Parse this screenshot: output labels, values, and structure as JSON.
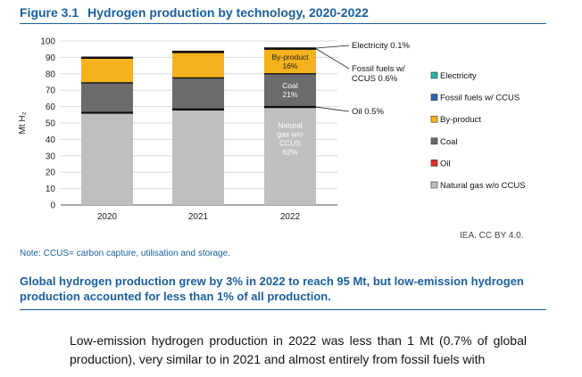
{
  "figure": {
    "number": "Figure 3.1",
    "title": "Hydrogen production by technology, 2020-2022"
  },
  "chart_data": {
    "type": "bar",
    "stacked": true,
    "ylabel": "Mt H₂",
    "ylim": [
      0,
      100
    ],
    "yticks": [
      0,
      10,
      20,
      30,
      40,
      50,
      60,
      70,
      80,
      90,
      100
    ],
    "categories": [
      "2020",
      "2021",
      "2022"
    ],
    "series": [
      {
        "name": "Natural gas w/o CCUS",
        "color": "#bfbfbf",
        "values": [
          56,
          58,
          59.5
        ]
      },
      {
        "name": "Oil",
        "color": "#e32c2c",
        "values": [
          0.5,
          0.5,
          0.5
        ]
      },
      {
        "name": "Coal",
        "color": "#6b6b6b",
        "values": [
          18,
          19,
          20
        ]
      },
      {
        "name": "By-product",
        "color": "#f5b21c",
        "values": [
          15,
          15.5,
          15
        ]
      },
      {
        "name": "Fossil fuels w/ CCUS",
        "color": "#2f63a8",
        "values": [
          0.5,
          0.6,
          0.6
        ]
      },
      {
        "name": "Electricity",
        "color": "#2ab4a3",
        "values": [
          0.1,
          0.1,
          0.1
        ]
      }
    ],
    "legend": [
      "Electricity",
      "Fossil fuels w/ CCUS",
      "By-product",
      "Coal",
      "Oil",
      "Natural gas w/o CCUS"
    ],
    "bar_labels_2022": [
      {
        "series": "By-product",
        "lines": [
          "By-product",
          "16%"
        ]
      },
      {
        "series": "Coal",
        "lines": [
          "Coal",
          "21%"
        ]
      },
      {
        "series": "Natural gas w/o CCUS",
        "lines": [
          "Natural",
          "gas w/o",
          "CCUS",
          "62%"
        ]
      }
    ],
    "annotations": [
      {
        "series": "Electricity",
        "lines": [
          "Electricity 0.1%"
        ]
      },
      {
        "series": "Fossil fuels w/ CCUS",
        "lines": [
          "Fossil fuels w/",
          "CCUS 0.6%"
        ]
      },
      {
        "series": "Oil",
        "lines": [
          "Oil 0.5%"
        ]
      }
    ]
  },
  "note": "Note: CCUS= carbon capture, utilisation and storage.",
  "source": "IEA. CC BY 4.0.",
  "caption": "Global hydrogen production grew by 3% in 2022 to reach 95 Mt, but low-emission hydrogen production accounted for less than 1% of all production.",
  "body_text": "Low-emission hydrogen production in 2022 was less than 1 Mt (0.7% of global production), very similar to in 2021 and almost entirely from fossil fuels with"
}
